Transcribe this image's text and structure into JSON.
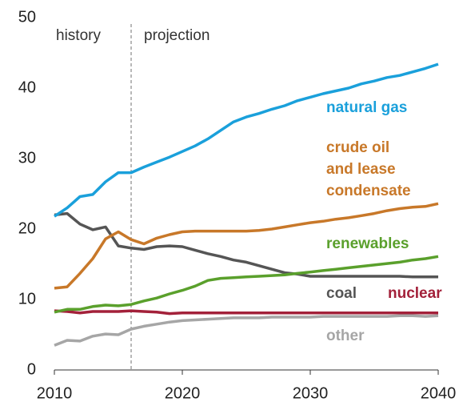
{
  "chart_data": {
    "type": "line",
    "annotations": [
      "history",
      "projection"
    ],
    "divider_x": 2016,
    "x": [
      2010,
      2011,
      2012,
      2013,
      2014,
      2015,
      2016,
      2017,
      2018,
      2019,
      2020,
      2021,
      2022,
      2023,
      2024,
      2025,
      2026,
      2027,
      2028,
      2029,
      2030,
      2031,
      2032,
      2033,
      2034,
      2035,
      2036,
      2037,
      2038,
      2039,
      2040
    ],
    "xlim": [
      2010,
      2040
    ],
    "xticks": [
      2010,
      2020,
      2030,
      2040
    ],
    "ylim": [
      0,
      50
    ],
    "yticks": [
      0,
      10,
      20,
      30,
      40,
      50
    ],
    "grid": false,
    "series": [
      {
        "name": "natural gas",
        "color": "#1aa0db",
        "values": [
          21.8,
          23.0,
          24.6,
          24.9,
          26.7,
          28.0,
          28.0,
          28.8,
          29.5,
          30.2,
          31.0,
          31.8,
          32.8,
          34.0,
          35.2,
          35.9,
          36.4,
          37.0,
          37.5,
          38.2,
          38.7,
          39.2,
          39.6,
          40.0,
          40.6,
          41.0,
          41.5,
          41.8,
          42.3,
          42.8,
          43.4
        ]
      },
      {
        "name": "crude oil\nand lease\ncondensate",
        "color": "#c87829",
        "values": [
          11.6,
          11.8,
          13.7,
          15.8,
          18.6,
          19.6,
          18.5,
          17.9,
          18.7,
          19.2,
          19.6,
          19.7,
          19.7,
          19.7,
          19.7,
          19.7,
          19.8,
          20.0,
          20.3,
          20.6,
          20.9,
          21.1,
          21.4,
          21.6,
          21.9,
          22.2,
          22.6,
          22.9,
          23.1,
          23.2,
          23.6
        ]
      },
      {
        "name": "renewables",
        "color": "#5aa02c",
        "values": [
          8.2,
          8.6,
          8.6,
          9.0,
          9.2,
          9.1,
          9.3,
          9.8,
          10.2,
          10.8,
          11.3,
          11.9,
          12.7,
          13.0,
          13.1,
          13.2,
          13.3,
          13.4,
          13.5,
          13.7,
          13.9,
          14.1,
          14.3,
          14.5,
          14.7,
          14.9,
          15.1,
          15.3,
          15.6,
          15.8,
          16.1
        ]
      },
      {
        "name": "coal",
        "color": "#555555",
        "values": [
          22.0,
          22.2,
          20.7,
          19.9,
          20.3,
          17.6,
          17.3,
          17.1,
          17.5,
          17.6,
          17.5,
          17.0,
          16.5,
          16.1,
          15.6,
          15.3,
          14.8,
          14.3,
          13.8,
          13.6,
          13.3,
          13.3,
          13.3,
          13.3,
          13.3,
          13.3,
          13.3,
          13.3,
          13.2,
          13.2,
          13.2
        ]
      },
      {
        "name": "nuclear",
        "color": "#a3213a",
        "values": [
          8.4,
          8.3,
          8.1,
          8.3,
          8.3,
          8.3,
          8.4,
          8.3,
          8.2,
          8.0,
          8.1,
          8.1,
          8.1,
          8.1,
          8.1,
          8.1,
          8.1,
          8.1,
          8.1,
          8.1,
          8.1,
          8.1,
          8.1,
          8.1,
          8.1,
          8.1,
          8.1,
          8.1,
          8.1,
          8.1,
          8.1
        ]
      },
      {
        "name": "other",
        "color": "#a6a6a6",
        "values": [
          3.5,
          4.2,
          4.1,
          4.8,
          5.1,
          5.0,
          5.8,
          6.2,
          6.5,
          6.8,
          7.0,
          7.1,
          7.2,
          7.3,
          7.4,
          7.4,
          7.4,
          7.5,
          7.5,
          7.5,
          7.5,
          7.6,
          7.6,
          7.6,
          7.6,
          7.6,
          7.6,
          7.7,
          7.7,
          7.6,
          7.7
        ]
      }
    ]
  }
}
